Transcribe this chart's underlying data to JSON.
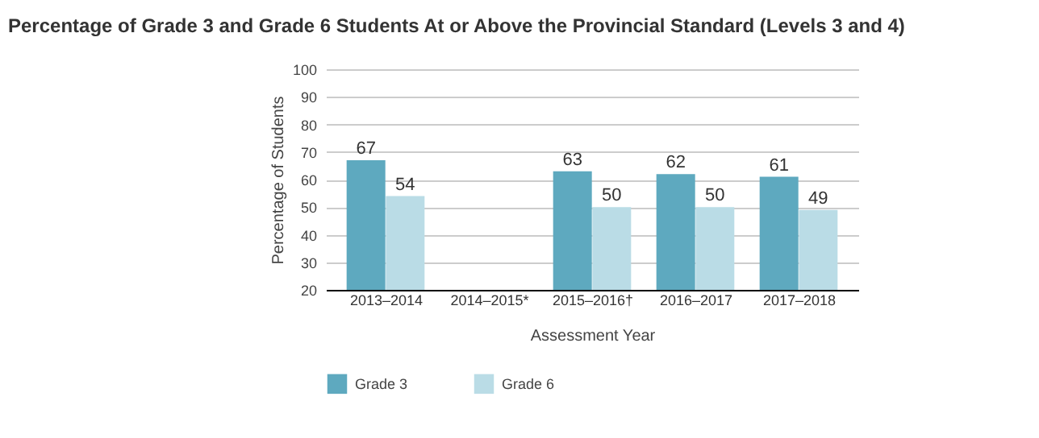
{
  "chart_data": {
    "type": "bar",
    "title": "Percentage of Grade 3 and Grade 6 Students At or Above the Provincial Standard (Levels 3 and 4)",
    "xlabel": "Assessment Year",
    "ylabel": "Percentage of Students",
    "categories": [
      "2013–2014",
      "2014–2015*",
      "2015–2016†",
      "2016–2017",
      "2017–2018"
    ],
    "series": [
      {
        "name": "Grade 3",
        "color": "#5ea9bf",
        "values": [
          67,
          null,
          63,
          62,
          61
        ]
      },
      {
        "name": "Grade 6",
        "color": "#badce6",
        "values": [
          54,
          null,
          50,
          50,
          49
        ]
      }
    ],
    "ylim": [
      20,
      100
    ],
    "yticks": [
      20,
      30,
      40,
      50,
      60,
      70,
      80,
      90,
      100
    ],
    "grid": "y",
    "legend": "bottom",
    "data_labels": true
  }
}
